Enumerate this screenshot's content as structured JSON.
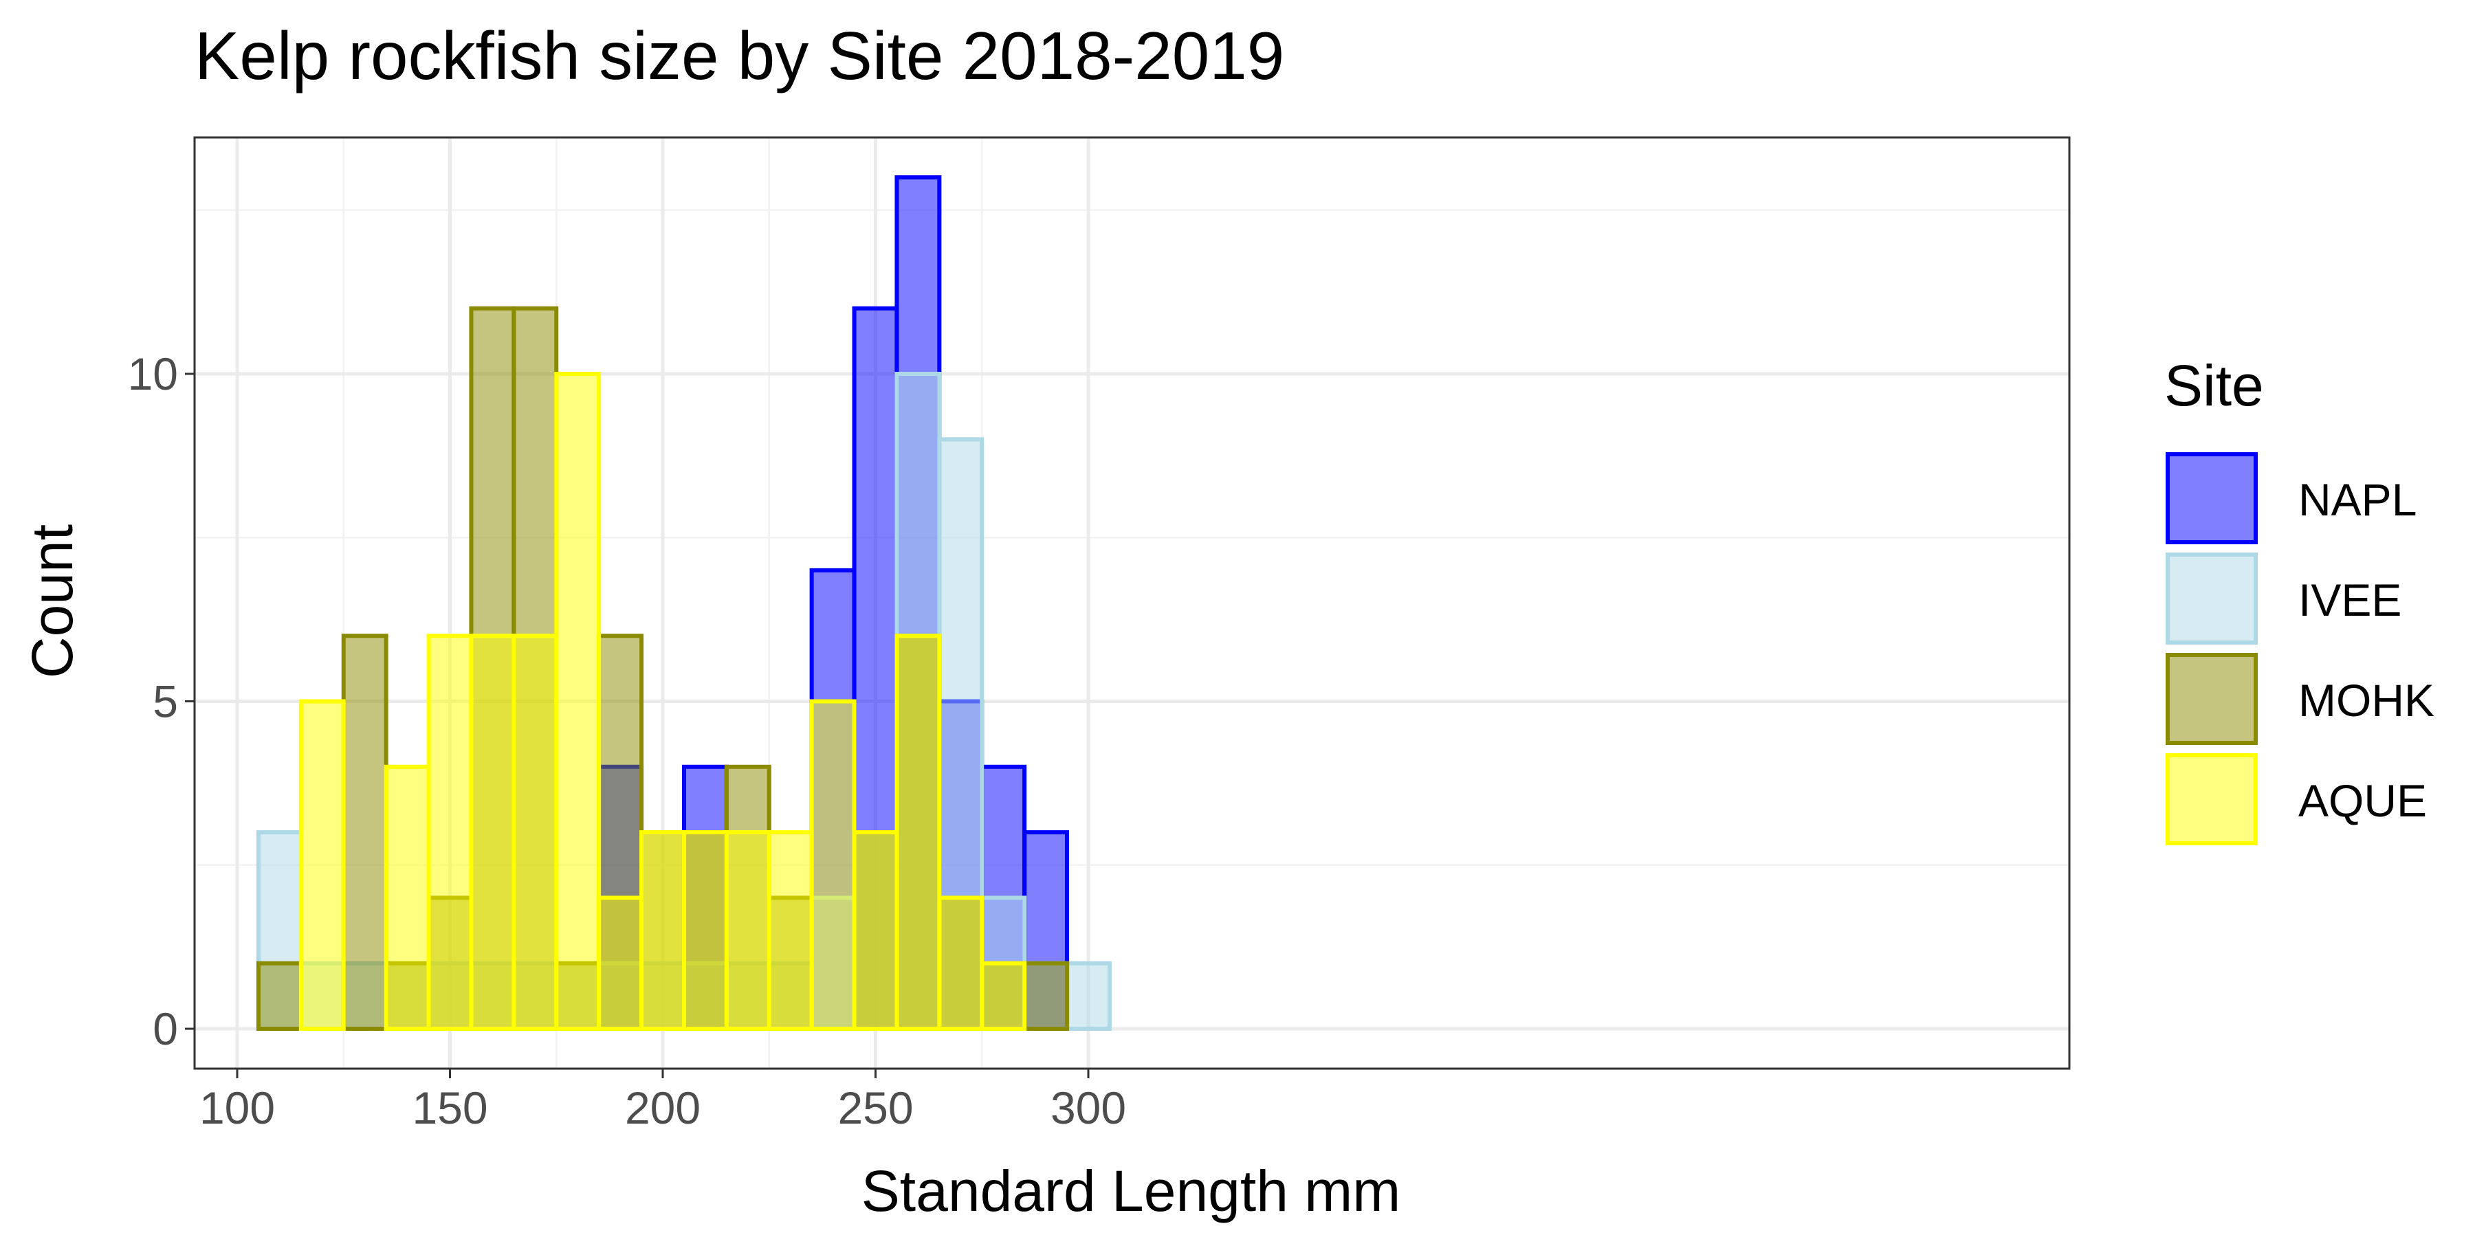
{
  "chart_data": {
    "type": "bar",
    "subtype": "overlaid-histogram",
    "title": "Kelp rockfish size by Site 2018-2019",
    "xlabel": "Standard Length mm",
    "ylabel": "Count",
    "xlim": [
      100,
      310
    ],
    "ylim": [
      0,
      13
    ],
    "xticks": [
      100,
      150,
      200,
      250,
      300
    ],
    "yticks": [
      0,
      5,
      10
    ],
    "bin_width": 10,
    "bin_centers": [
      110,
      120,
      130,
      140,
      150,
      160,
      170,
      180,
      190,
      200,
      210,
      220,
      230,
      240,
      250,
      260,
      270,
      280,
      290,
      300
    ],
    "grid": true,
    "legend": {
      "title": "Site",
      "position": "right"
    },
    "series": [
      {
        "name": "NAPL",
        "fill": "#0000ff",
        "stroke": "#0000ff",
        "values": [
          0,
          0,
          0,
          0,
          0,
          0,
          0,
          0,
          4,
          0,
          4,
          0,
          0,
          7,
          11,
          13,
          5,
          4,
          3,
          0
        ]
      },
      {
        "name": "IVEE",
        "fill": "#add8e6",
        "stroke": "#add8e6",
        "values": [
          3,
          1,
          1,
          1,
          1,
          1,
          1,
          1,
          1,
          1,
          1,
          1,
          1,
          2,
          3,
          10,
          9,
          2,
          1,
          1
        ]
      },
      {
        "name": "MOHK",
        "fill": "#8b8b00",
        "stroke": "#8b8b00",
        "values": [
          1,
          0,
          6,
          1,
          2,
          11,
          11,
          1,
          6,
          3,
          3,
          4,
          2,
          0,
          3,
          6,
          2,
          1,
          1,
          0
        ]
      },
      {
        "name": "AQUE",
        "fill": "#ffff00",
        "stroke": "#ffff00",
        "values": [
          0,
          5,
          0,
          4,
          6,
          6,
          6,
          10,
          2,
          3,
          3,
          3,
          3,
          5,
          3,
          6,
          2,
          1,
          0,
          0
        ]
      }
    ]
  }
}
